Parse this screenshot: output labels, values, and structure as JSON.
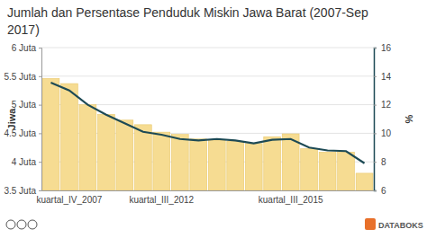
{
  "chart_data": {
    "type": "bar",
    "title": "Jumlah dan Persentase Penduduk Miskin Jawa Barat (2007-Sep 2017)",
    "y_label": "Jiwa",
    "y2_label": "%",
    "annotations": [
      "DATABOKS"
    ],
    "categories": [
      null,
      "kuartal_IV_2007",
      null,
      null,
      null,
      null,
      "kuartal_III_2012",
      null,
      null,
      null,
      null,
      null,
      null,
      "kuartal_III_2015",
      null,
      null,
      null,
      null
    ],
    "series": [
      {
        "type": "bar",
        "color": "#f6dc92",
        "values": [
          5.46,
          5.37,
          5.0,
          4.83,
          4.73,
          4.65,
          4.52,
          4.48,
          4.4,
          4.38,
          4.36,
          4.32,
          4.44,
          4.49,
          4.23,
          4.17,
          4.17,
          3.8
        ]
      },
      {
        "type": "line",
        "color": "#1d4a55",
        "axis": "y2",
        "values": [
          13.55,
          13.0,
          12.0,
          11.3,
          10.7,
          10.1,
          9.9,
          9.6,
          9.5,
          9.6,
          9.5,
          9.3,
          9.55,
          9.6,
          9.0,
          8.8,
          8.75,
          7.9
        ]
      }
    ],
    "ylim": [
      3.5,
      6
    ],
    "yticks": [
      {
        "value": 3.5,
        "label": "3.5 Juta"
      },
      {
        "value": 4,
        "label": "4 Juta"
      },
      {
        "value": 4.5,
        "label": "4.5 Juta"
      },
      {
        "value": 5,
        "label": "5 Juta"
      },
      {
        "value": 5.5,
        "label": "5.5 Juta"
      },
      {
        "value": 6,
        "label": "6 Juta"
      }
    ],
    "y2lim": [
      6,
      16
    ],
    "y2ticks": [
      6,
      8,
      10,
      12,
      14,
      16
    ],
    "grid": true
  }
}
